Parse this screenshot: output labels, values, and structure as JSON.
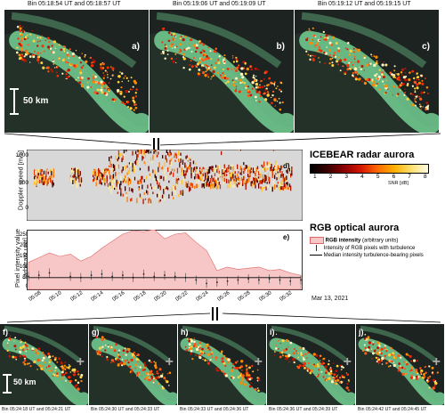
{
  "top_panels": [
    {
      "title": "Bin 05:18:54 UT and 05:18:57 UT",
      "label": "a)"
    },
    {
      "title": "Bin 05:19:06 UT and 05:19:09 UT",
      "label": "b)"
    },
    {
      "title": "Bin 05:19:12 UT and 05:19:15 UT",
      "label": "c)"
    }
  ],
  "bottom_panels": [
    {
      "title": "Bin 05:24:18 UT and 05:24:21 UT",
      "label": "f)"
    },
    {
      "title": "Bin 05:24:30 UT and 05:24:33 UT",
      "label": "g)"
    },
    {
      "title": "Bin 05:24:33 UT and 05:24:36 UT",
      "label": "h)"
    },
    {
      "title": "Bin 05:24:36 UT and 05:24:39 UT",
      "label": "i)"
    },
    {
      "title": "Bin 05:24:42 UT and 05:24:45 UT",
      "label": "j)"
    }
  ],
  "scale_top": "50 km",
  "scale_bottom": "50 km",
  "panel_d": {
    "label": "d)",
    "ylabel": "Doppler speed [m/s]",
    "yticks": [
      "1000",
      "500",
      "0"
    ],
    "legend_title": "ICEBEAR radar aurora",
    "colorbar_ticks": [
      "1",
      "2",
      "3",
      "4",
      "5",
      "6",
      "7",
      "8"
    ],
    "colorbar_label": "SNR [dB]"
  },
  "panel_e": {
    "label": "e)",
    "ylabel_1": "Pixel intensity value",
    "ylabel_2": "[arbitrary unit]",
    "yticks": [
      "250",
      "200",
      "150",
      "100",
      "50",
      "0"
    ],
    "legend_title": "RGB optical aurora",
    "legend": [
      {
        "name": "RGB intensity",
        "suffix": "(arbitrary units)"
      },
      {
        "name": "Intensity of RGB pixels with turbulence"
      },
      {
        "name": "Median intensity turbulence-bearing pixels"
      }
    ],
    "xticks": [
      "05:08",
      "05:10",
      "05:12",
      "05:14",
      "05:16",
      "05:18",
      "05:20",
      "05:22",
      "05:24",
      "05:26",
      "05:28",
      "05:30",
      "05:32"
    ],
    "date": "Mar 13, 2021"
  },
  "chart_data": {
    "type": "area",
    "x": [
      "05:07",
      "05:08",
      "05:09",
      "05:10",
      "05:11",
      "05:12",
      "05:13",
      "05:14",
      "05:15",
      "05:16",
      "05:17",
      "05:18",
      "05:19",
      "05:20",
      "05:21",
      "05:22",
      "05:23",
      "05:24",
      "05:25",
      "05:26",
      "05:27",
      "05:28",
      "05:29",
      "05:30",
      "05:31",
      "05:32",
      "05:33"
    ],
    "series": [
      {
        "name": "RGB intensity",
        "values": [
          115,
          135,
          155,
          140,
          150,
          120,
          140,
          175,
          205,
          235,
          250,
          245,
          255,
          215,
          235,
          240,
          200,
          165,
          80,
          95,
          85,
          90,
          95,
          80,
          85,
          70,
          60
        ]
      },
      {
        "name": "Intensity of RGB pixels with turbulence",
        "values": [
          55,
          60,
          70,
          null,
          55,
          50,
          60,
          65,
          55,
          60,
          50,
          65,
          55,
          60,
          55,
          50,
          40,
          25,
          30,
          35,
          40,
          45,
          40,
          45,
          40,
          35,
          40
        ]
      },
      {
        "name": "Median intensity turbulence-bearing pixels",
        "values": [
          50,
          50,
          50,
          50,
          50,
          50,
          50,
          50,
          50,
          50,
          50,
          50,
          50,
          50,
          50,
          50,
          50,
          50,
          50,
          50,
          50,
          50,
          50,
          50,
          50,
          50,
          50
        ]
      }
    ],
    "ylim": [
      0,
      250
    ],
    "ylabel": "Pixel intensity value"
  },
  "colors": {
    "aurora_green": "#7fe6a3",
    "sky": "#1d2320",
    "rgb_fill": "#f7c6c6",
    "rgb_edge": "#e06666",
    "radar_bg": "#d8d8d8"
  }
}
